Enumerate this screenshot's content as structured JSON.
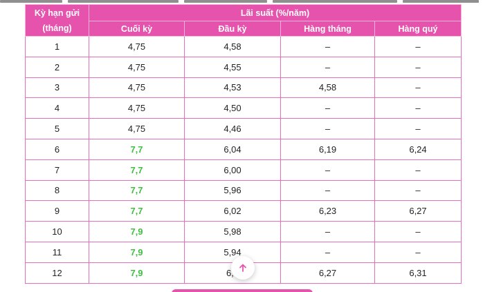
{
  "table": {
    "header": {
      "term_label_line1": "Kỳ hạn gửi",
      "term_label_line2": "(tháng)",
      "rate_group": "Lãi suất (%/năm)",
      "columns": [
        "Cuối kỳ",
        "Đầu kỳ",
        "Hàng tháng",
        "Hàng quý"
      ]
    },
    "rows": [
      {
        "term": "1",
        "end": "4,75",
        "start": "4,58",
        "monthly": "–",
        "quarterly": "–",
        "end_highlight": false
      },
      {
        "term": "2",
        "end": "4,75",
        "start": "4,55",
        "monthly": "–",
        "quarterly": "–",
        "end_highlight": false
      },
      {
        "term": "3",
        "end": "4,75",
        "start": "4,53",
        "monthly": "4,58",
        "quarterly": "–",
        "end_highlight": false
      },
      {
        "term": "4",
        "end": "4,75",
        "start": "4,50",
        "monthly": "–",
        "quarterly": "–",
        "end_highlight": false
      },
      {
        "term": "5",
        "end": "4,75",
        "start": "4,46",
        "monthly": "–",
        "quarterly": "–",
        "end_highlight": false
      },
      {
        "term": "6",
        "end": "7,7",
        "start": "6,04",
        "monthly": "6,19",
        "quarterly": "6,24",
        "end_highlight": true
      },
      {
        "term": "7",
        "end": "7,7",
        "start": "6,00",
        "monthly": "–",
        "quarterly": "–",
        "end_highlight": true
      },
      {
        "term": "8",
        "end": "7,7",
        "start": "5,96",
        "monthly": "–",
        "quarterly": "–",
        "end_highlight": true
      },
      {
        "term": "9",
        "end": "7,7",
        "start": "6,02",
        "monthly": "6,23",
        "quarterly": "6,27",
        "end_highlight": true
      },
      {
        "term": "10",
        "end": "7,9",
        "start": "5,98",
        "monthly": "–",
        "quarterly": "–",
        "end_highlight": true
      },
      {
        "term": "11",
        "end": "7,9",
        "start": "5,94",
        "monthly": "–",
        "quarterly": "–",
        "end_highlight": true
      },
      {
        "term": "12",
        "end": "7,9",
        "start": "6,0",
        "monthly": "6,27",
        "quarterly": "6,31",
        "end_highlight": true
      }
    ]
  },
  "colors": {
    "header_bg": "#e553ad",
    "border": "#e46fc0",
    "highlight_text": "#3fbf3f"
  },
  "scroll_top_button": {
    "icon": "arrow-up-icon",
    "color": "#e553ad"
  }
}
